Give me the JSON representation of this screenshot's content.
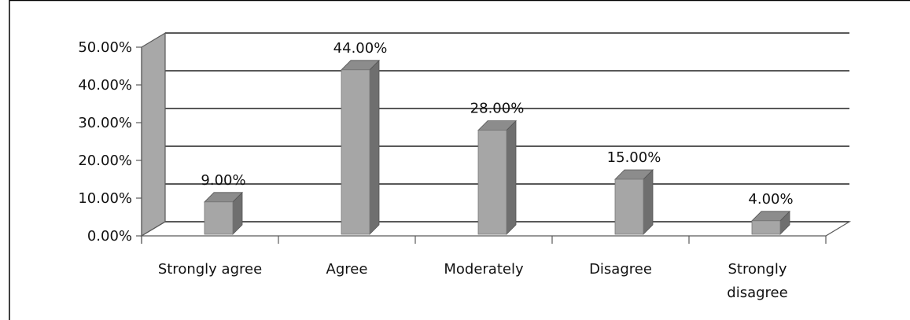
{
  "chart_data": {
    "type": "bar",
    "title": "",
    "xlabel": "",
    "ylabel": "",
    "categories": [
      "Strongly agree",
      "Agree",
      "Moderately",
      "Disagree",
      "Strongly disagree"
    ],
    "category_lines": [
      [
        "Strongly agree"
      ],
      [
        "Agree"
      ],
      [
        "Moderately"
      ],
      [
        "Disagree"
      ],
      [
        "Strongly",
        "disagree"
      ]
    ],
    "values": [
      9.0,
      44.0,
      28.0,
      15.0,
      4.0
    ],
    "value_labels": [
      "9.00%",
      "44.00%",
      "28.00%",
      "15.00%",
      "4.00%"
    ],
    "y_ticks": [
      0,
      10,
      20,
      30,
      40,
      50
    ],
    "y_tick_labels": [
      "0.00%",
      "10.00%",
      "20.00%",
      "30.00%",
      "40.00%",
      "50.00%"
    ],
    "ylim": [
      0,
      50
    ],
    "style": "3d-column",
    "grid": true,
    "legend": "none",
    "colors": {
      "bar_front": "#a6a6a6",
      "bar_side": "#6f6f6f",
      "bar_top": "#8c8c8c",
      "back_wall": "#ffffff",
      "side_wall": "#a8a8a8",
      "grid": "#595959",
      "frame": "#000000"
    }
  }
}
